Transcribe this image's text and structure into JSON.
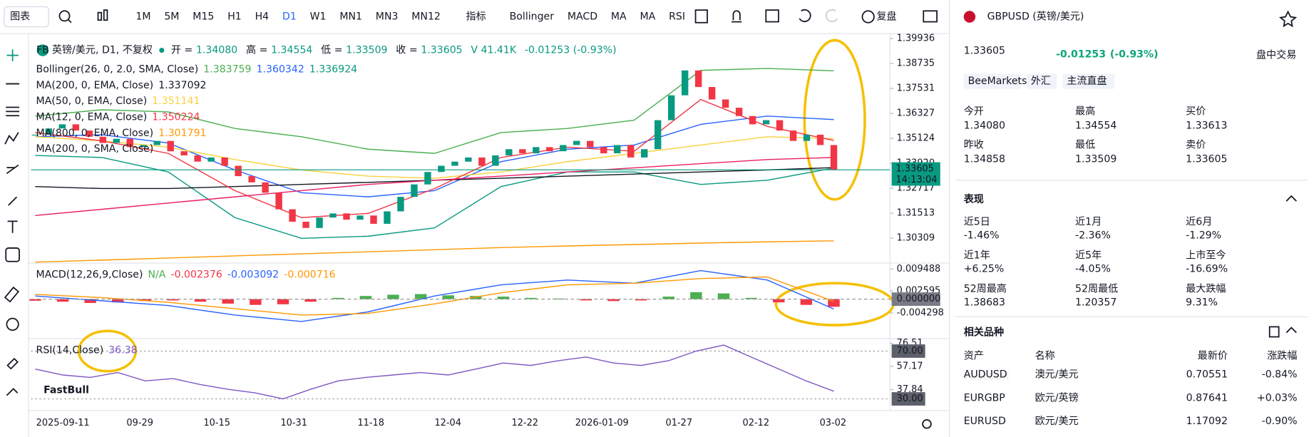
{
  "toolbar": {
    "chart_menu": "图表",
    "timeframes": [
      "1M",
      "5M",
      "M15",
      "H1",
      "H4",
      "D1",
      "W1",
      "MN1",
      "MN3",
      "MN12"
    ],
    "active_timeframe": 5,
    "indicator_menu": "指标",
    "indicators": [
      "Bollinger",
      "MACD",
      "MA",
      "MA",
      "RSI"
    ],
    "replay": "复盘"
  },
  "price_pane": {
    "legend": {
      "logo": "FB",
      "symbol": "英镑/美元, D1, 不复权",
      "fields": [
        {
          "label": "开 =",
          "value": "1.34080"
        },
        {
          "label": "高 =",
          "value": "1.34554"
        },
        {
          "label": "低 =",
          "value": "1.33509"
        },
        {
          "label": "收 =",
          "value": "1.33605"
        }
      ],
      "volume": "V 41.41K",
      "change": "-0.01253 (-0.93%)"
    },
    "ylim": [
      1.29143,
      1.401
    ],
    "yticks": [
      1.39936,
      1.38735,
      1.37531,
      1.36327,
      1.35124,
      {
        "value": 1.3392,
        "label": "1.33920"
      },
      1.32717,
      1.31513,
      1.30309
    ],
    "candle_colors": {
      "up": "#089981",
      "down": "#f23645"
    },
    "closes": [
      1.353,
      1.356,
      1.358,
      1.355,
      1.352,
      1.349,
      1.351,
      1.347,
      1.348,
      1.35,
      1.345,
      1.343,
      1.34,
      1.342,
      1.338,
      1.333,
      1.33,
      1.325,
      1.317,
      1.311,
      1.308,
      1.313,
      1.315,
      1.312,
      1.314,
      1.31,
      1.316,
      1.323,
      1.329,
      1.335,
      1.338,
      1.34,
      1.342,
      1.338,
      1.343,
      1.346,
      1.344,
      1.347,
      1.345,
      1.348,
      1.35,
      1.347,
      1.344,
      1.348,
      1.342,
      1.346,
      1.36,
      1.372,
      1.384,
      1.376,
      1.37,
      1.366,
      1.362,
      1.358,
      1.36,
      1.355,
      1.35,
      1.353,
      1.348,
      1.33605
    ],
    "current_price": {
      "value": 1.33605,
      "label": "1.33605",
      "time": "14:13:04",
      "color": "#089981"
    },
    "indicators": [
      {
        "name": "Bollinger(26, 0, 2.0, SMA, Close)",
        "series": [
          {
            "color": "#4caf50",
            "label": "1.383759",
            "values": [
              1.362,
              1.365,
              1.364,
              1.356,
              1.352,
              1.346,
              1.344,
              1.354,
              1.356,
              1.36,
              1.384,
              1.385,
              1.3838
            ]
          },
          {
            "color": "#2962ff",
            "label": "1.360342",
            "values": [
              1.352,
              1.353,
              1.349,
              1.336,
              1.325,
              1.323,
              1.326,
              1.34,
              1.346,
              1.348,
              1.358,
              1.362,
              1.3603
            ]
          },
          {
            "color": "#089981",
            "label": "1.336924",
            "values": [
              1.343,
              1.342,
              1.335,
              1.313,
              1.303,
              1.304,
              1.308,
              1.328,
              1.335,
              1.335,
              1.329,
              1.331,
              1.3369
            ]
          }
        ]
      },
      {
        "name": "MA(200, 0, EMA, Close)",
        "series": [
          {
            "color": "#131722",
            "label": "1.337092",
            "values": [
              1.328,
              1.327,
              1.327,
              1.328,
              1.329,
              1.33,
              1.331,
              1.332,
              1.333,
              1.334,
              1.335,
              1.336,
              1.3371
            ]
          }
        ]
      },
      {
        "name": "MA(50, 0, EMA, Close)",
        "series": [
          {
            "color": "#f7d23e",
            "label": "1.351141",
            "values": [
              1.352,
              1.35,
              1.347,
              1.341,
              1.336,
              1.333,
              1.332,
              1.335,
              1.34,
              1.344,
              1.348,
              1.352,
              1.3511
            ]
          }
        ]
      },
      {
        "name": "MA(12, 0, EMA, Close)",
        "series": [
          {
            "color": "#f23645",
            "label": "1.350224",
            "values": [
              1.354,
              1.35,
              1.344,
              1.326,
              1.313,
              1.315,
              1.327,
              1.342,
              1.347,
              1.345,
              1.37,
              1.357,
              1.3502
            ]
          }
        ]
      },
      {
        "name": "MA(800, 0, EMA, Close)",
        "series": [
          {
            "color": "#ff9800",
            "label": "1.301791",
            "values": [
              1.2915,
              1.2925,
              1.2935,
              1.2945,
              1.2955,
              1.2965,
              1.2975,
              1.2985,
              1.2993,
              1.3,
              1.3007,
              1.3013,
              1.3018
            ]
          }
        ]
      },
      {
        "name": "MA(200, 0, SMA, Close)",
        "series": [
          {
            "color": "#e91e63",
            "values": [
              1.314,
              1.317,
              1.32,
              1.323,
              1.326,
              1.329,
              1.331,
              1.333,
              1.335,
              1.337,
              1.339,
              1.341,
              1.342
            ]
          }
        ]
      }
    ]
  },
  "macd_pane": {
    "name": "MACD(12,26,9,Close)",
    "status": "N/A",
    "status_color": "#4caf50",
    "histogram": {
      "label": "-0.002376",
      "up_color": "#4caf50",
      "down_color": "#f23645",
      "values": [
        -0.0005,
        -0.0008,
        -0.0012,
        -0.001,
        -0.0006,
        -0.0004,
        -0.0008,
        -0.0014,
        -0.0018,
        -0.0016,
        -0.0008,
        0.0004,
        0.001,
        0.0014,
        0.0016,
        0.0012,
        0.001,
        0.0008,
        0.0004,
        0.0002,
        -0.0004,
        -0.0006,
        -0.0004,
        0.0008,
        0.0022,
        0.0018,
        0.0004,
        -0.001,
        -0.0018,
        -0.0024
      ]
    },
    "lines": [
      {
        "color": "#2962ff",
        "label": "-0.003092",
        "values": [
          0.001,
          -0.0005,
          -0.002,
          -0.005,
          -0.007,
          -0.004,
          0.001,
          0.0045,
          0.006,
          0.005,
          0.009,
          0.006,
          -0.0031
        ]
      },
      {
        "color": "#ff9800",
        "label": "-0.000716",
        "values": [
          0.0015,
          0.0005,
          -0.001,
          -0.003,
          -0.005,
          -0.0045,
          -0.0015,
          0.002,
          0.0045,
          0.005,
          0.0065,
          0.007,
          -0.0007
        ]
      }
    ],
    "ylim": [
      -0.01186,
      0.01081
    ],
    "yticks": [
      0.009488,
      0.002595,
      {
        "value": 0,
        "label": "0.000000"
      },
      -0.004298
    ]
  },
  "rsi_pane": {
    "name": "RSI(14,Close)",
    "label": "36.38",
    "color": "#7e57c2",
    "values": [
      55,
      50,
      48,
      52,
      45,
      47,
      42,
      38,
      35,
      30,
      38,
      45,
      48,
      50,
      52,
      50,
      55,
      60,
      58,
      62,
      65,
      60,
      58,
      62,
      70,
      75,
      65,
      55,
      45,
      36.38
    ],
    "ylim": [
      20.2,
      79.8
    ],
    "yticks": [
      76.51,
      {
        "value": 70,
        "label": "70.00"
      },
      57.17,
      37.84,
      {
        "value": 30,
        "label": "30.00"
      }
    ]
  },
  "x_axis": {
    "labels": [
      "2025-09-11",
      "09-29",
      "10-15",
      "10-31",
      "11-18",
      "12-04",
      "12-22",
      "2026-01-09",
      "01-27",
      "02-12",
      "03-02"
    ]
  },
  "watermark": "FastBull",
  "sidebar": {
    "symbol": "GBPUSD (英镑/美元)",
    "price": "1.33605",
    "price_color": "#f23645",
    "change": "-0.01253",
    "change_pct": "(-0.93%)",
    "change_color": "#0ca678",
    "session": "盘中交易",
    "tags": [
      "BeeMarkets",
      "外汇",
      "主流直盘"
    ],
    "quote": [
      [
        {
          "label": "今开",
          "value": "1.34080"
        },
        {
          "label": "最高",
          "value": "1.34554"
        },
        {
          "label": "买价",
          "value": "1.33613",
          "color": "#0ca678"
        }
      ],
      [
        {
          "label": "昨收",
          "value": "1.34858"
        },
        {
          "label": "最低",
          "value": "1.33509"
        },
        {
          "label": "卖价",
          "value": "1.33605",
          "color": "#f23645"
        }
      ]
    ],
    "performance_title": "表现",
    "performance": [
      [
        {
          "label": "近5日",
          "value": "-1.46%"
        },
        {
          "label": "近1月",
          "value": "-2.36%"
        },
        {
          "label": "近6月",
          "value": "-1.29%"
        }
      ],
      [
        {
          "label": "近1年",
          "value": "+6.25%"
        },
        {
          "label": "近5年",
          "value": "-4.05%"
        },
        {
          "label": "上市至今",
          "value": "-16.69%"
        }
      ],
      [
        {
          "label": "52周最高",
          "value": "1.38683"
        },
        {
          "label": "52周最低",
          "value": "1.20357"
        },
        {
          "label": "最大跌幅",
          "value": "9.31%",
          "color": "#0ca678"
        }
      ]
    ],
    "related_title": "相关品种",
    "related_header": [
      "资产",
      "名称",
      "最新价",
      "涨跌幅"
    ],
    "related": [
      {
        "cells": [
          "AUDUSD",
          "澳元/美元",
          "0.70551",
          "-0.84%"
        ],
        "colors": [
          "#f23645",
          "#0ca678"
        ]
      },
      {
        "cells": [
          "EURGBP",
          "欧元/英镑",
          "0.87641",
          "+0.03%"
        ],
        "colors": [
          "#f23645",
          "#f23645"
        ]
      },
      {
        "cells": [
          "EURUSD",
          "欧元/美元",
          "1.17092",
          "-0.90%"
        ],
        "colors": [
          "#f23645",
          "#0ca678"
        ]
      }
    ]
  }
}
